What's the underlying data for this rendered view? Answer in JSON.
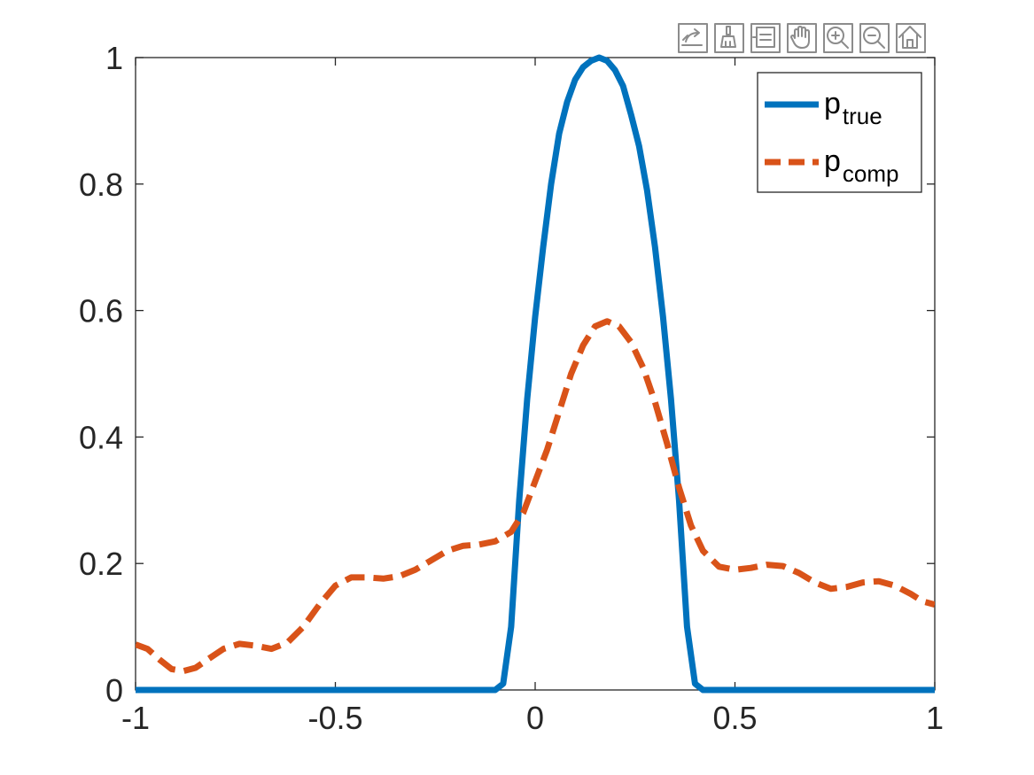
{
  "toolbar": {
    "icons": [
      "export-icon",
      "brush-icon",
      "legend-icon",
      "pan-icon",
      "zoom-in-icon",
      "zoom-out-icon",
      "home-icon"
    ]
  },
  "colors": {
    "p_true": "#0072BD",
    "p_comp": "#D95319",
    "axes": "#262626"
  },
  "chart_data": {
    "type": "line",
    "title": "",
    "xlabel": "",
    "ylabel": "",
    "xlim": [
      -1,
      1
    ],
    "ylim": [
      0,
      1
    ],
    "x_ticks": [
      -1,
      -0.5,
      0,
      0.5,
      1
    ],
    "x_tick_labels": [
      "-1",
      "-0.5",
      "0",
      "0.5",
      "1"
    ],
    "y_ticks": [
      0,
      0.2,
      0.4,
      0.6,
      0.8,
      1
    ],
    "y_tick_labels": [
      "0",
      "0.2",
      "0.4",
      "0.6",
      "0.8",
      "1"
    ],
    "grid": false,
    "legend_position": "top-right",
    "series": [
      {
        "name": "p_true",
        "legend_main": "p",
        "legend_sub": "true",
        "style": "solid",
        "points": [
          [
            -1,
            0
          ],
          [
            -0.1,
            0
          ],
          [
            -0.08,
            0.01
          ],
          [
            -0.06,
            0.1
          ],
          [
            -0.04,
            0.3
          ],
          [
            -0.02,
            0.46
          ],
          [
            0.0,
            0.59
          ],
          [
            0.02,
            0.7
          ],
          [
            0.04,
            0.8
          ],
          [
            0.06,
            0.88
          ],
          [
            0.08,
            0.93
          ],
          [
            0.1,
            0.965
          ],
          [
            0.12,
            0.985
          ],
          [
            0.14,
            0.995
          ],
          [
            0.16,
            1.0
          ],
          [
            0.18,
            0.995
          ],
          [
            0.2,
            0.98
          ],
          [
            0.22,
            0.955
          ],
          [
            0.24,
            0.91
          ],
          [
            0.26,
            0.86
          ],
          [
            0.28,
            0.79
          ],
          [
            0.3,
            0.7
          ],
          [
            0.32,
            0.59
          ],
          [
            0.34,
            0.46
          ],
          [
            0.36,
            0.3
          ],
          [
            0.38,
            0.1
          ],
          [
            0.4,
            0.01
          ],
          [
            0.42,
            0
          ],
          [
            1,
            0
          ]
        ]
      },
      {
        "name": "p_comp",
        "legend_main": "p",
        "legend_sub": "comp",
        "style": "dashed",
        "points": [
          [
            -1,
            0.072
          ],
          [
            -0.97,
            0.065
          ],
          [
            -0.94,
            0.048
          ],
          [
            -0.91,
            0.033
          ],
          [
            -0.88,
            0.03
          ],
          [
            -0.85,
            0.035
          ],
          [
            -0.82,
            0.048
          ],
          [
            -0.78,
            0.065
          ],
          [
            -0.74,
            0.073
          ],
          [
            -0.7,
            0.07
          ],
          [
            -0.66,
            0.065
          ],
          [
            -0.62,
            0.075
          ],
          [
            -0.58,
            0.1
          ],
          [
            -0.54,
            0.135
          ],
          [
            -0.5,
            0.165
          ],
          [
            -0.46,
            0.178
          ],
          [
            -0.42,
            0.178
          ],
          [
            -0.38,
            0.176
          ],
          [
            -0.34,
            0.18
          ],
          [
            -0.3,
            0.19
          ],
          [
            -0.26,
            0.205
          ],
          [
            -0.22,
            0.22
          ],
          [
            -0.18,
            0.228
          ],
          [
            -0.14,
            0.23
          ],
          [
            -0.1,
            0.235
          ],
          [
            -0.06,
            0.25
          ],
          [
            -0.03,
            0.28
          ],
          [
            0.0,
            0.33
          ],
          [
            0.03,
            0.38
          ],
          [
            0.06,
            0.44
          ],
          [
            0.09,
            0.5
          ],
          [
            0.12,
            0.545
          ],
          [
            0.15,
            0.575
          ],
          [
            0.18,
            0.583
          ],
          [
            0.21,
            0.575
          ],
          [
            0.24,
            0.55
          ],
          [
            0.27,
            0.51
          ],
          [
            0.3,
            0.455
          ],
          [
            0.33,
            0.39
          ],
          [
            0.36,
            0.32
          ],
          [
            0.39,
            0.26
          ],
          [
            0.42,
            0.22
          ],
          [
            0.46,
            0.195
          ],
          [
            0.5,
            0.19
          ],
          [
            0.54,
            0.193
          ],
          [
            0.58,
            0.198
          ],
          [
            0.62,
            0.196
          ],
          [
            0.66,
            0.185
          ],
          [
            0.7,
            0.17
          ],
          [
            0.74,
            0.16
          ],
          [
            0.78,
            0.163
          ],
          [
            0.82,
            0.17
          ],
          [
            0.86,
            0.172
          ],
          [
            0.9,
            0.165
          ],
          [
            0.94,
            0.152
          ],
          [
            0.97,
            0.14
          ],
          [
            1.0,
            0.135
          ]
        ]
      }
    ]
  }
}
